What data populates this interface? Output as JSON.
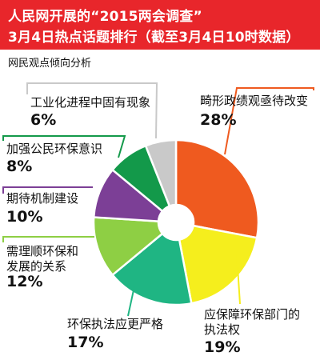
{
  "header": {
    "line1": "人民网开展的“2015两会调查”",
    "line2": "3月4日热点话题排行（截至3月4日10时数据）"
  },
  "chart_data": {
    "type": "pie",
    "title": "网民观点倾向分析",
    "slices": [
      {
        "label": "畸形政绩观亟待改变",
        "value": 28,
        "display": "28%",
        "color": "#ef5a1f"
      },
      {
        "label": "应保障环保部门的执法权",
        "value": 19,
        "display": "19%",
        "color": "#f5ee1d"
      },
      {
        "label": "环保执法应更严格",
        "value": 17,
        "display": "17%",
        "color": "#1fb583"
      },
      {
        "label": "需理顺环保和发展的关系",
        "value": 12,
        "display": "12%",
        "color": "#8ecf44"
      },
      {
        "label": "期待机制建设",
        "value": 10,
        "display": "10%",
        "color": "#7c3f96"
      },
      {
        "label": "加强公民环保意识",
        "value": 8,
        "display": "8%",
        "color": "#13994a"
      },
      {
        "label": "工业化进程中固有现象",
        "value": 6,
        "display": "6%",
        "color": "#c9c9c9"
      }
    ]
  }
}
